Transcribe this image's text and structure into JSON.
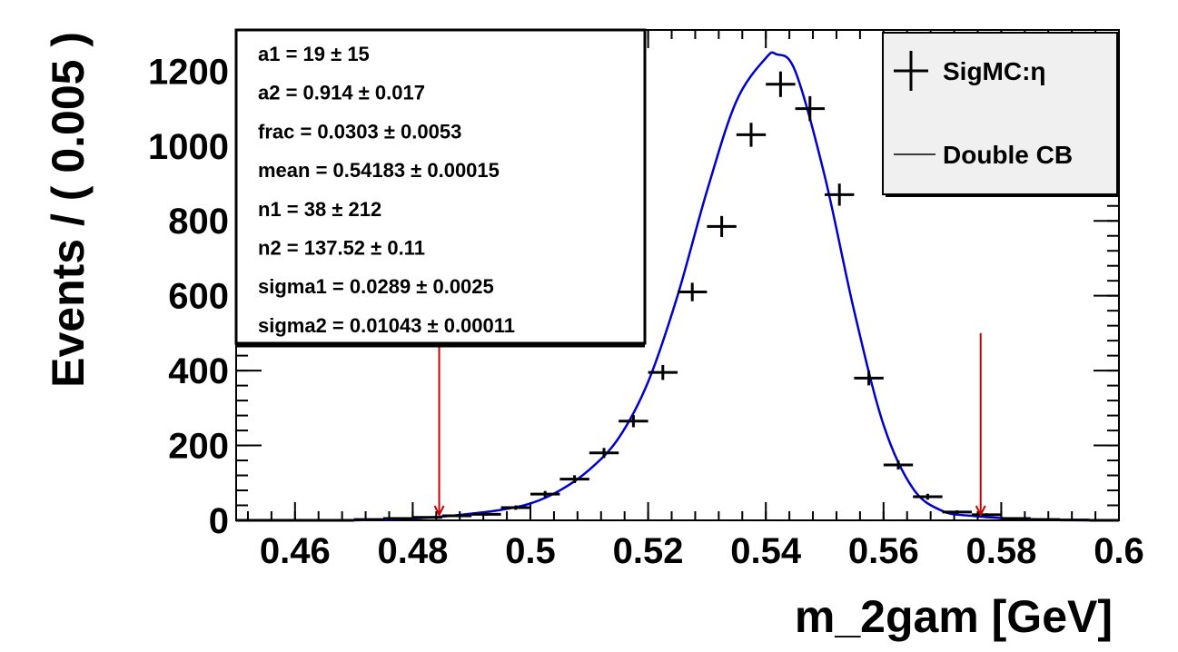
{
  "chart_data": {
    "type": "scatter",
    "xlabel": "m_2gam [GeV]",
    "ylabel": "Events / ( 0.005 )",
    "xlim": [
      0.45,
      0.6
    ],
    "ylim": [
      0,
      1310
    ],
    "x_ticks": [
      0.46,
      0.48,
      0.5,
      0.52,
      0.54,
      0.56,
      0.58,
      0.6
    ],
    "x_tick_labels": [
      "0.46",
      "0.48",
      "0.5",
      "0.52",
      "0.54",
      "0.56",
      "0.58",
      "0.6"
    ],
    "y_ticks": [
      0,
      200,
      400,
      600,
      800,
      1000,
      1200
    ],
    "y_tick_labels": [
      "0",
      "200",
      "400",
      "600",
      "800",
      "1000",
      "1200"
    ],
    "bin_width": 0.005,
    "series": [
      {
        "name": "SigMC:η",
        "style": "points-with-errors",
        "color": "#000000",
        "x": [
          0.4525,
          0.4575,
          0.4625,
          0.4675,
          0.4725,
          0.4775,
          0.4825,
          0.4875,
          0.4925,
          0.4975,
          0.5025,
          0.5075,
          0.5125,
          0.5175,
          0.5225,
          0.5275,
          0.5325,
          0.5375,
          0.5425,
          0.5475,
          0.5525,
          0.5575,
          0.5625,
          0.5675,
          0.5725,
          0.5775,
          0.5825,
          0.5875,
          0.5925,
          0.5975
        ],
        "y": [
          0,
          0,
          0,
          0,
          2,
          5,
          8,
          12,
          16,
          34,
          70,
          110,
          180,
          265,
          395,
          610,
          785,
          1030,
          1165,
          1100,
          870,
          380,
          148,
          63,
          22,
          15,
          5,
          2,
          1,
          0
        ]
      },
      {
        "name": "Double CB",
        "style": "line",
        "color": "#0000cc",
        "peak_x": 0.5418,
        "peak_y": 1245,
        "curve_x": [
          0.47,
          0.475,
          0.48,
          0.485,
          0.49,
          0.495,
          0.5,
          0.505,
          0.51,
          0.515,
          0.52,
          0.525,
          0.53,
          0.535,
          0.54,
          0.5418,
          0.545,
          0.55,
          0.555,
          0.56,
          0.565,
          0.57,
          0.575,
          0.58,
          0.585,
          0.59,
          0.595,
          0.6
        ],
        "curve_y": [
          0,
          2,
          5,
          10,
          18,
          28,
          45,
          80,
          135,
          220,
          370,
          600,
          880,
          1120,
          1235,
          1245,
          1200,
          920,
          560,
          255,
          85,
          25,
          12,
          6,
          3,
          1,
          0,
          0
        ]
      }
    ],
    "arrows": [
      {
        "x": 0.4845,
        "y_top": 500,
        "y_bottom": 0,
        "color": "#cc0000"
      },
      {
        "x": 0.5765,
        "y_top": 500,
        "y_bottom": 0,
        "color": "#cc0000"
      }
    ],
    "stats_box": [
      "a1 =  19 ± 15",
      "a2 =  0.914 ± 0.017",
      "frac =  0.0303 ± 0.0053",
      "mean =  0.54183 ± 0.00015",
      "n1 =  38 ± 212",
      "n2 =  137.52 ± 0.11",
      "sigma1 =  0.0289 ± 0.0025",
      "sigma2 =  0.01043 ± 0.00011"
    ],
    "legend": {
      "placement": "top-right",
      "entries": [
        {
          "label": "SigMC:η",
          "marker": "cross",
          "color": "#000000"
        },
        {
          "label": "Double CB",
          "marker": "line",
          "color": "#000000"
        }
      ]
    },
    "grid": false
  }
}
